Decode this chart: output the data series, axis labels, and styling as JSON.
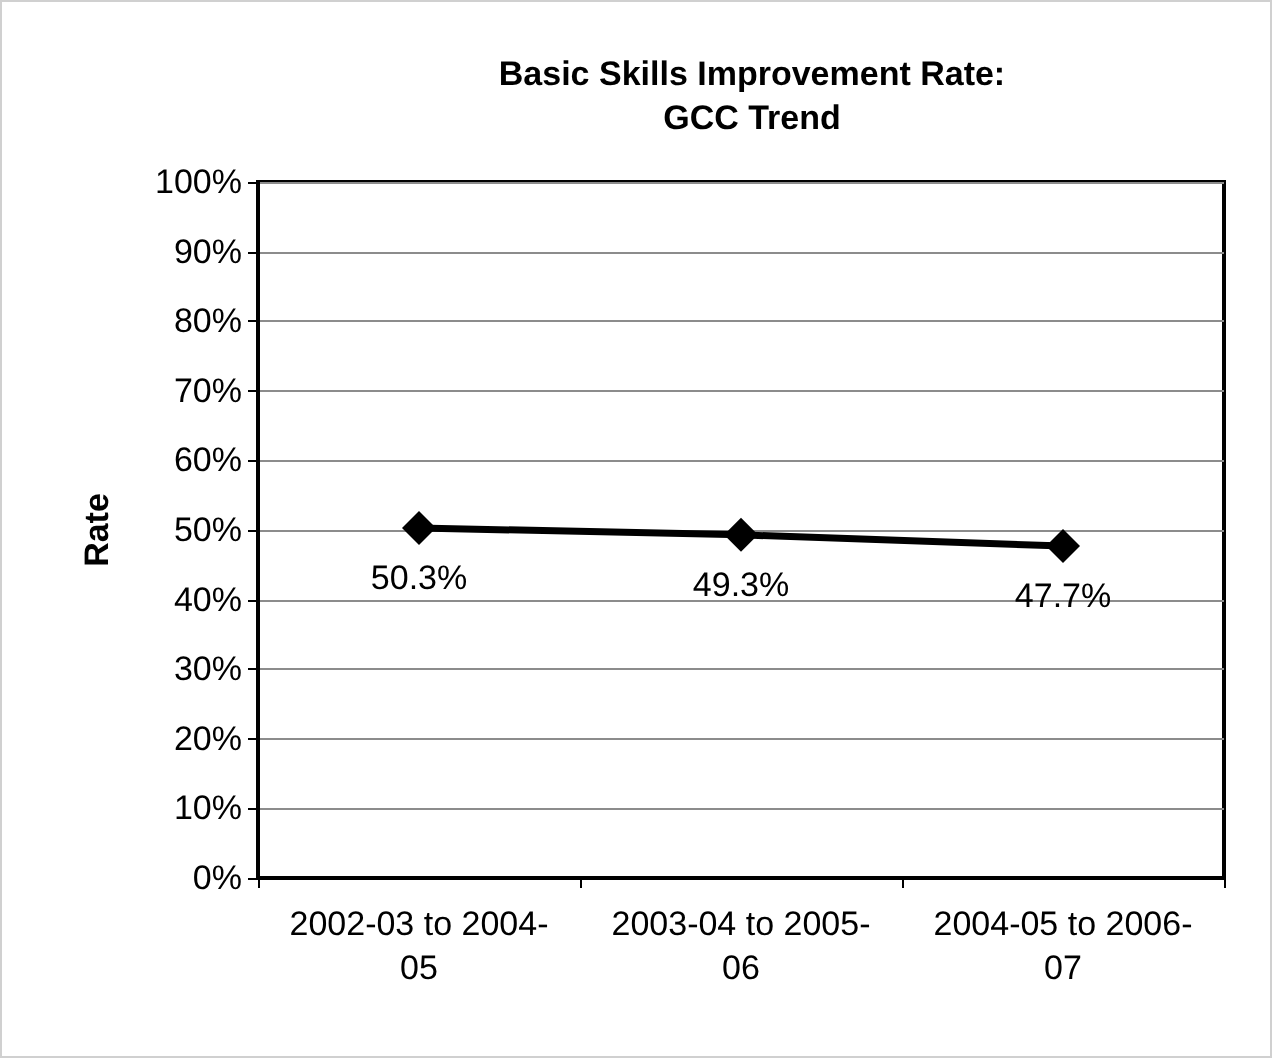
{
  "chart_data": {
    "type": "line",
    "title": "Basic Skills Improvement Rate:\nGCC Trend",
    "ylabel": "Rate",
    "categories": [
      "2002-03 to 2004-05",
      "2003-04 to 2005-06",
      "2004-05 to 2006-07"
    ],
    "series": [
      {
        "color": "#000000",
        "values": [
          50.3,
          49.3,
          47.7
        ],
        "value_labels": [
          "50.3%",
          "49.3%",
          "47.7%"
        ]
      }
    ],
    "ylim": [
      0,
      100
    ],
    "yticks": [
      {
        "value": 0,
        "label": "0%"
      },
      {
        "value": 10,
        "label": "10%"
      },
      {
        "value": 20,
        "label": "20%"
      },
      {
        "value": 30,
        "label": "30%"
      },
      {
        "value": 40,
        "label": "40%"
      },
      {
        "value": 50,
        "label": "50%"
      },
      {
        "value": 60,
        "label": "60%"
      },
      {
        "value": 70,
        "label": "70%"
      },
      {
        "value": 80,
        "label": "80%"
      },
      {
        "value": 90,
        "label": "90%"
      },
      {
        "value": 100,
        "label": "100%"
      }
    ],
    "grid": "y",
    "marker": "diamond",
    "line_style": "solid"
  }
}
